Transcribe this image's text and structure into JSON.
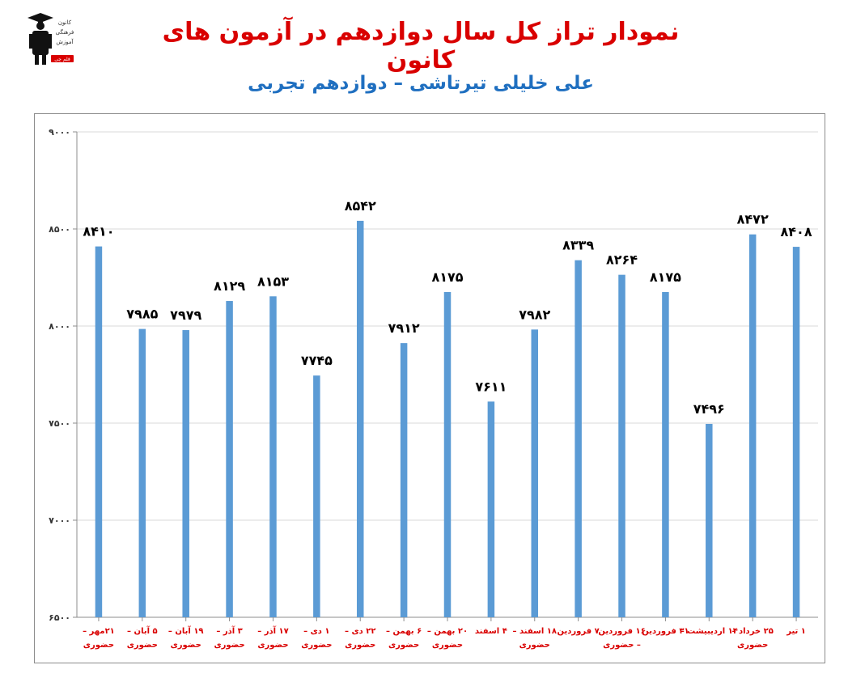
{
  "title": "نمودار تراز کل سال دوازدهم در آزمون های کانون",
  "subtitle": "علی خلیلی تیرتاشی – دوازدهم تجربی",
  "logo": {
    "icon": "graduate-icon",
    "lines": [
      "کانون",
      "فرهنگی",
      "آموزش",
      "قلم چی"
    ],
    "accent": "#d90000"
  },
  "colors": {
    "bar": "#5b9bd5",
    "grid": "#d9d9d9",
    "title": "#d90000",
    "subtitle": "#1f6fc0",
    "category": "#d90000",
    "value": "#000000"
  },
  "chart_data": {
    "type": "bar",
    "categories": [
      [
        "۲۱مهر –",
        "حضوری"
      ],
      [
        "۵ آبان –",
        "حضوری"
      ],
      [
        "۱۹ آبان –",
        "حضوری"
      ],
      [
        "۳ آذر –",
        "حضوری"
      ],
      [
        "۱۷ آذر –",
        "حضوری"
      ],
      [
        "۱ دی –",
        "حضوری"
      ],
      [
        "۲۲ دی –",
        "حضوری"
      ],
      [
        "۶ بهمن –",
        "حضوری"
      ],
      [
        "۲۰ بهمن –",
        "حضوری"
      ],
      [
        "۴ اسفند"
      ],
      [
        "۱۸ اسفند –",
        "حضوری"
      ],
      [
        "۷ فروردین"
      ],
      [
        "۱۶ فروردین",
        "– حضوری"
      ],
      [
        "۳۱ فروردین"
      ],
      [
        "۱۴ اردیبیشت –"
      ],
      [
        "۲۵ خرداد –",
        "حضوری"
      ],
      [
        "۱ تیر"
      ]
    ],
    "values": [
      8410,
      7985,
      7979,
      8129,
      8153,
      7745,
      8542,
      7912,
      8175,
      7611,
      7982,
      8339,
      8264,
      8175,
      7496,
      8472,
      8408
    ],
    "value_labels": [
      "۸۴۱۰",
      "۷۹۸۵",
      "۷۹۷۹",
      "۸۱۲۹",
      "۸۱۵۳",
      "۷۷۴۵",
      "۸۵۴۲",
      "۷۹۱۲",
      "۸۱۷۵",
      "۷۶۱۱",
      "۷۹۸۲",
      "۸۳۳۹",
      "۸۲۶۴",
      "۸۱۷۵",
      "۷۴۹۶",
      "۸۴۷۲",
      "۸۴۰۸"
    ],
    "ylim": [
      6500,
      9000
    ],
    "yticks": [
      6500,
      7000,
      7500,
      8000,
      8500,
      9000
    ],
    "ytick_labels": [
      "۶۵۰۰",
      "۷۰۰۰",
      "۷۵۰۰",
      "۸۰۰۰",
      "۸۵۰۰",
      "۹۰۰۰"
    ],
    "grid": true,
    "legend": "none",
    "xlabel": "",
    "ylabel": ""
  }
}
